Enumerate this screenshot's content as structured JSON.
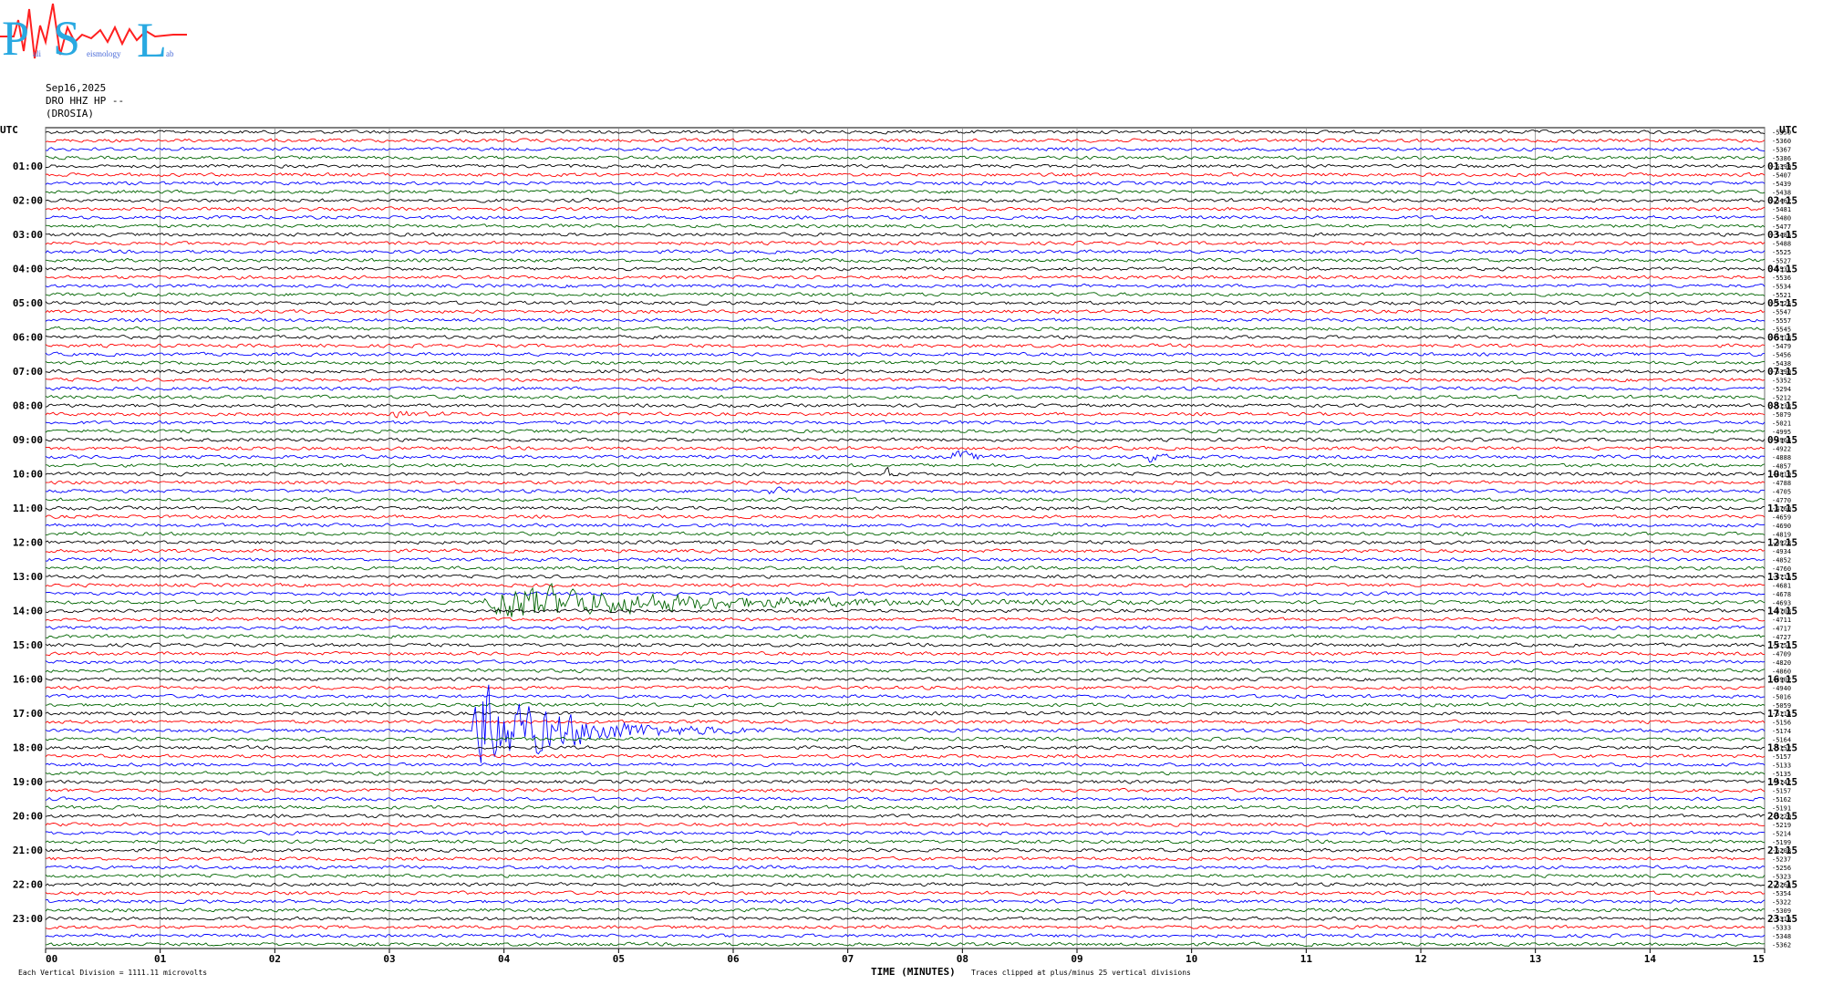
{
  "logo": {
    "letters": [
      "P",
      "S",
      "L"
    ],
    "word_1": "ali",
    "word_2": "eismology",
    "word_3": "ab",
    "colors": {
      "P": "#29a9e1",
      "S": "#29a9e1",
      "L": "#29a9e1",
      "wave": "#ff2020",
      "words": "#4a6bd8"
    }
  },
  "header": {
    "date": "Sep16,2025",
    "station": "DRO HHZ HP --",
    "site": "(DROSIA)"
  },
  "chart_data": {
    "type": "line",
    "title": "",
    "xlabel": "TIME (MINUTES)",
    "ylabel": "",
    "left_axis_title": "UTC",
    "right_axis_title": "UTC",
    "xlim": [
      0,
      15
    ],
    "x_ticks": [
      "00",
      "01",
      "02",
      "03",
      "04",
      "05",
      "06",
      "07",
      "08",
      "09",
      "10",
      "11",
      "12",
      "13",
      "14",
      "15"
    ],
    "left_hour_labels": [
      "01:00",
      "02:00",
      "03:00",
      "04:00",
      "05:00",
      "06:00",
      "07:00",
      "08:00",
      "09:00",
      "10:00",
      "11:00",
      "12:00",
      "13:00",
      "14:00",
      "15:00",
      "16:00",
      "17:00",
      "18:00",
      "19:00",
      "20:00",
      "21:00",
      "22:00",
      "23:00"
    ],
    "right_hour_labels": [
      "01:15",
      "02:15",
      "03:15",
      "04:15",
      "05:15",
      "06:15",
      "07:15",
      "08:15",
      "09:15",
      "10:15",
      "11:15",
      "12:15",
      "13:15",
      "14:15",
      "15:15",
      "16:15",
      "17:15",
      "18:15",
      "19:15",
      "20:15",
      "21:15",
      "22:15",
      "23:15"
    ],
    "trace_colors": [
      "#000000",
      "#ff0000",
      "#0000ff",
      "#006400"
    ],
    "trace_offsets": [
      "-5350",
      "-5360",
      "-5367",
      "-5386",
      "-5399",
      "-5407",
      "-5439",
      "-5438",
      "-5462",
      "-5481",
      "-5480",
      "-5477",
      "-5485",
      "-5488",
      "-5525",
      "-5527",
      "-5531",
      "-5536",
      "-5534",
      "-5521",
      "-5525",
      "-5547",
      "-5557",
      "-5545",
      "-5518",
      "-5479",
      "-5456",
      "-5438",
      "-5390",
      "-5352",
      "-5294",
      "-5212",
      "-5133",
      "-5079",
      "-5021",
      "-4995",
      "-4964",
      "-4922",
      "-4888",
      "-4857",
      "-4819",
      "-4788",
      "-4705",
      "-4770",
      "-4760",
      "-4659",
      "-4690",
      "-4819",
      "-4928",
      "-4934",
      "-4852",
      "-4760",
      "-4715",
      "-4681",
      "-4678",
      "-4693",
      "-4708",
      "-4711",
      "-4717",
      "-4727",
      "-4751",
      "-4709",
      "-4820",
      "-4860",
      "-4902",
      "-4940",
      "-5016",
      "-5059",
      "-5114",
      "-5156",
      "-5174",
      "-5164",
      "-5152",
      "-5157",
      "-5133",
      "-5135",
      "-5142",
      "-5157",
      "-5162",
      "-5191",
      "-5220",
      "-5219",
      "-5214",
      "-5199",
      "-5208",
      "-5237",
      "-5256",
      "-5323",
      "-5264",
      "-5354",
      "-5322",
      "-5309",
      "-5318",
      "-5333",
      "-5348",
      "-5362"
    ],
    "events": [
      {
        "trace": 70,
        "start_min": 3.7,
        "end_min": 6.5,
        "peak_divisions": 6,
        "color": "#0000ff"
      },
      {
        "trace": 55,
        "start_min": 3.8,
        "end_min": 9.8,
        "peak_divisions": 2.5,
        "color": "#006400"
      },
      {
        "trace": 40,
        "start_min": 7.3,
        "end_min": 7.5,
        "peak_divisions": 1.3,
        "color": "#006400"
      },
      {
        "trace": 42,
        "start_min": 6.3,
        "end_min": 6.8,
        "peak_divisions": 0.5,
        "color": "#0000ff"
      },
      {
        "trace": 38,
        "start_min": 9.6,
        "end_min": 9.9,
        "peak_divisions": 1.0,
        "color": "#ff0000"
      },
      {
        "trace": 38,
        "start_min": 7.9,
        "end_min": 8.6,
        "peak_divisions": 0.8,
        "color": "#ff0000"
      },
      {
        "trace": 33,
        "start_min": 3.0,
        "end_min": 4.2,
        "peak_divisions": 0.3,
        "color": "#0000ff"
      }
    ],
    "footer_left": "Each Vertical Division = 1111.11 microvolts",
    "footer_right": "Traces clipped at plus/minus 25 vertical divisions",
    "grid": true,
    "legend": "none"
  }
}
